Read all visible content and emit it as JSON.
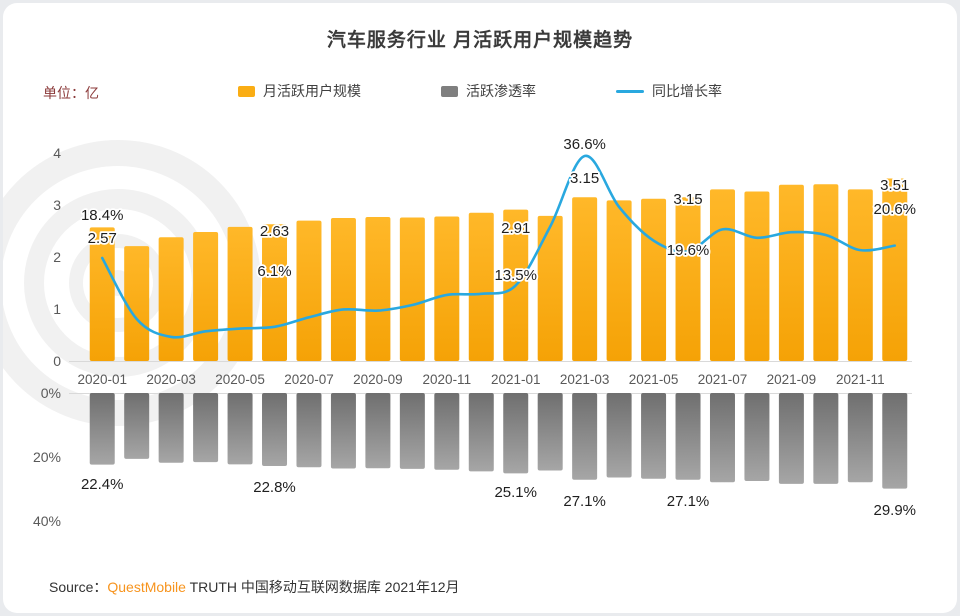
{
  "page": {
    "title": "汽车服务行业 月活跃用户规模趋势",
    "unit_label": "单位：亿",
    "source": {
      "prefix": "Source：",
      "brand": "QuestMobile",
      "rest": " TRUTH 中国移动互联网数据库 2021年12月"
    }
  },
  "legend": [
    {
      "label": "月活跃用户规模",
      "marker": "bar-swatch",
      "color": "#FAAD14"
    },
    {
      "label": "活跃渗透率",
      "marker": "bar-swatch",
      "color": "#7F7F7F"
    },
    {
      "label": "同比增长率",
      "marker": "line-swatch",
      "color": "#29A8DF"
    }
  ],
  "chart_data": {
    "type": "combo: top panel bar(月活跃用户规模)+line(同比增长率), bottom panel inverted bar(活跃渗透率)",
    "months": [
      "2020-01",
      "2020-02",
      "2020-03",
      "2020-04",
      "2020-05",
      "2020-06",
      "2020-07",
      "2020-08",
      "2020-09",
      "2020-10",
      "2020-11",
      "2020-12",
      "2021-01",
      "2021-02",
      "2021-03",
      "2021-04",
      "2021-05",
      "2021-06",
      "2021-07",
      "2021-08",
      "2021-09",
      "2021-10",
      "2021-11",
      "2021-12"
    ],
    "x_tick_labels": [
      "2020-01",
      "2020-03",
      "2020-05",
      "2020-07",
      "2020-09",
      "2020-11",
      "2021-01",
      "2021-03",
      "2021-05",
      "2021-07",
      "2021-09",
      "2021-11"
    ],
    "series": [
      {
        "name": "月活跃用户规模",
        "type": "bar",
        "unit": "亿",
        "ylim": [
          0,
          4
        ],
        "values": [
          2.57,
          2.21,
          2.38,
          2.48,
          2.58,
          2.63,
          2.7,
          2.75,
          2.77,
          2.76,
          2.78,
          2.85,
          2.91,
          2.79,
          3.15,
          3.09,
          3.12,
          3.15,
          3.3,
          3.26,
          3.39,
          3.4,
          3.3,
          3.51
        ]
      },
      {
        "name": "同比增长率",
        "type": "line",
        "unit": "%",
        "values": [
          18.4,
          7.5,
          4.3,
          5.3,
          5.8,
          6.1,
          7.8,
          9.2,
          9.0,
          10.0,
          11.8,
          12.0,
          13.5,
          24.0,
          36.6,
          27.5,
          21.5,
          19.6,
          23.5,
          22.0,
          23.0,
          22.5,
          19.8,
          20.6
        ]
      },
      {
        "name": "活跃渗透率",
        "type": "bar",
        "unit": "%",
        "inverted": true,
        "ylim": [
          0,
          40
        ],
        "values": [
          22.4,
          20.6,
          21.8,
          21.6,
          22.3,
          22.8,
          23.2,
          23.6,
          23.5,
          23.7,
          24.0,
          24.5,
          25.1,
          24.2,
          27.1,
          26.4,
          26.8,
          27.1,
          27.9,
          27.5,
          28.4,
          28.4,
          27.9,
          29.9
        ]
      }
    ],
    "annotations": [
      {
        "month": "2020-01",
        "mau": "2.57",
        "growth": "18.4%",
        "penetration": "22.4%"
      },
      {
        "month": "2020-06",
        "mau": "2.63",
        "growth": "6.1%",
        "penetration": "22.8%"
      },
      {
        "month": "2021-01",
        "mau": "2.91",
        "growth": "13.5%",
        "penetration": "25.1%"
      },
      {
        "month": "2021-03",
        "mau": "3.15",
        "growth": "36.6%",
        "penetration": "27.1%"
      },
      {
        "month": "2021-06",
        "mau": "3.15",
        "growth": "19.6%",
        "penetration": "27.1%"
      },
      {
        "month": "2021-12",
        "mau": "3.51",
        "growth": "20.6%",
        "penetration": "29.9%"
      }
    ],
    "y_ticks_top": [
      "4",
      "3",
      "2",
      "1",
      "0"
    ],
    "y_ticks_bottom": [
      "0%",
      "20%",
      "40%"
    ],
    "grid": "off",
    "legend_position": "top-center"
  }
}
